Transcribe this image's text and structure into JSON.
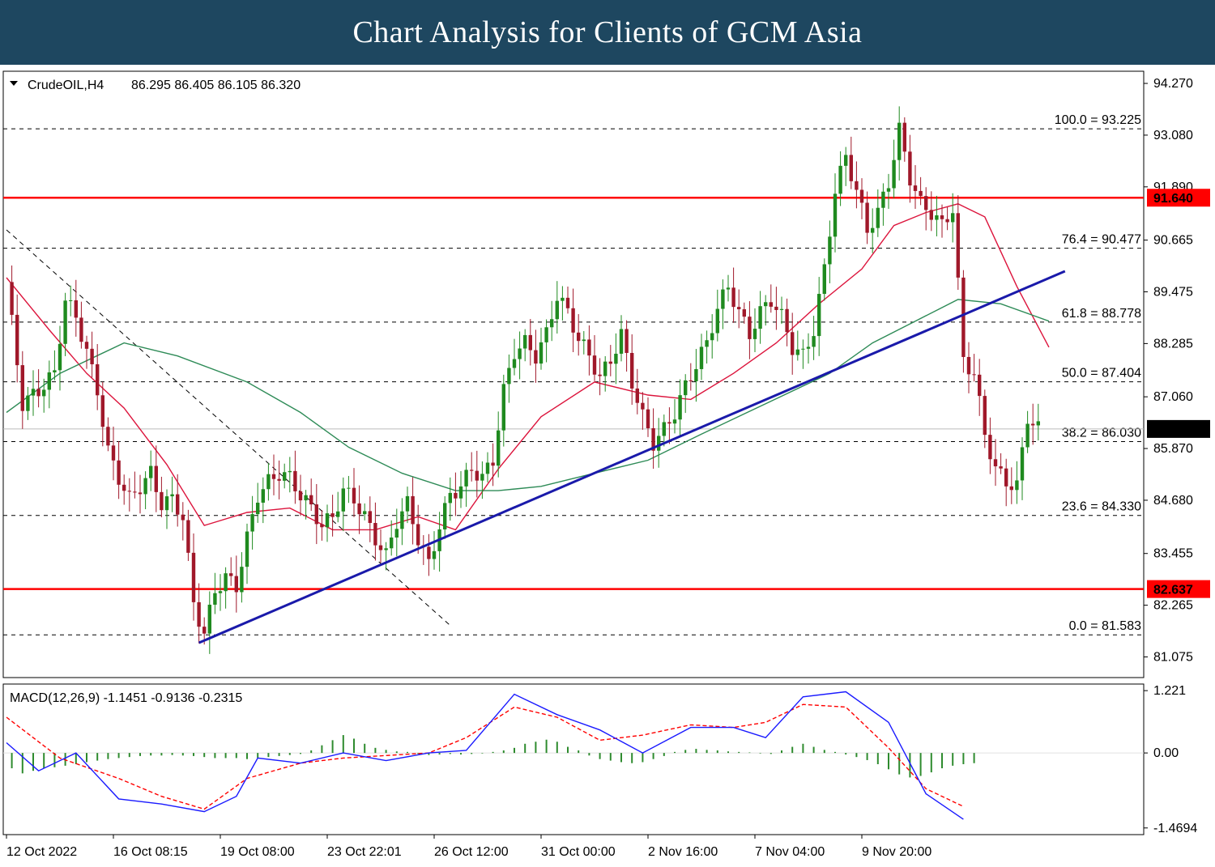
{
  "banner": {
    "title": "Chart Analysis for Clients of GCM Asia"
  },
  "chart_data": {
    "type": "candlestick",
    "symbol": "CrudeOIL,H4",
    "ohlc_header": "86.295 86.405 86.105 86.320",
    "price_axis": {
      "ylim": [
        80.6,
        94.55
      ],
      "ticks": [
        "94.270",
        "93.080",
        "91.890",
        "90.665",
        "89.475",
        "88.285",
        "87.060",
        "85.870",
        "84.680",
        "83.455",
        "82.265",
        "81.075"
      ]
    },
    "time_axis": {
      "labels": [
        "12 Oct 2022",
        "16 Oct 08:15",
        "19 Oct 08:00",
        "23 Oct 22:01",
        "26 Oct 12:00",
        "31 Oct 00:00",
        "2 Nov 16:00",
        "7 Nov 04:00",
        "9 Nov 20:00"
      ]
    },
    "current_price": {
      "label": "86.320",
      "value": 86.32
    },
    "horizontal_levels": [
      {
        "label": "91.640",
        "value": 91.64,
        "color": "#ff0000"
      },
      {
        "label": "82.637",
        "value": 82.637,
        "color": "#ff0000"
      }
    ],
    "fibonacci": [
      {
        "label": "100.0 = 93.225",
        "value": 93.225
      },
      {
        "label": "76.4 = 90.477",
        "value": 90.477
      },
      {
        "label": "61.8 = 88.778",
        "value": 88.778
      },
      {
        "label": "50.0 = 87.404",
        "value": 87.404
      },
      {
        "label": "38.2 = 86.030",
        "value": 86.03
      },
      {
        "label": "23.6 = 84.330",
        "value": 84.33
      },
      {
        "label": "0.0 = 81.583",
        "value": 81.583
      }
    ],
    "trendline_up": {
      "from": [
        36,
        81.4
      ],
      "to": [
        198,
        89.95
      ],
      "color": "#1a1aaa"
    },
    "trendline_down": {
      "from": [
        0,
        90.9
      ],
      "to": [
        83,
        81.8
      ]
    },
    "close_path": [
      [
        0,
        89.7
      ],
      [
        3,
        86.9
      ],
      [
        6,
        87.2
      ],
      [
        9,
        87.6
      ],
      [
        11,
        89.3
      ],
      [
        13,
        88.9
      ],
      [
        15,
        88.1
      ],
      [
        17,
        87.2
      ],
      [
        19,
        85.8
      ],
      [
        21,
        85.2
      ],
      [
        23,
        84.7
      ],
      [
        25,
        85.0
      ],
      [
        27,
        85.3
      ],
      [
        29,
        84.6
      ],
      [
        31,
        84.7
      ],
      [
        33,
        84.3
      ],
      [
        35,
        82.3
      ],
      [
        37,
        81.6
      ],
      [
        39,
        82.6
      ],
      [
        41,
        82.9
      ],
      [
        43,
        82.7
      ],
      [
        45,
        83.8
      ],
      [
        47,
        84.8
      ],
      [
        49,
        85.1
      ],
      [
        51,
        85.3
      ],
      [
        53,
        85.2
      ],
      [
        55,
        84.8
      ],
      [
        57,
        84.5
      ],
      [
        59,
        84.1
      ],
      [
        61,
        84.3
      ],
      [
        63,
        84.9
      ],
      [
        65,
        84.7
      ],
      [
        67,
        84.3
      ],
      [
        69,
        83.8
      ],
      [
        71,
        83.4
      ],
      [
        73,
        84.2
      ],
      [
        75,
        84.6
      ],
      [
        77,
        83.8
      ],
      [
        79,
        83.2
      ],
      [
        81,
        84.1
      ],
      [
        83,
        84.8
      ],
      [
        85,
        85.0
      ],
      [
        87,
        85.4
      ],
      [
        89,
        85.2
      ],
      [
        91,
        85.6
      ],
      [
        93,
        87.2
      ],
      [
        95,
        88.1
      ],
      [
        97,
        88.3
      ],
      [
        99,
        88.0
      ],
      [
        101,
        88.5
      ],
      [
        103,
        89.4
      ],
      [
        105,
        89.0
      ],
      [
        107,
        88.4
      ],
      [
        109,
        88.0
      ],
      [
        111,
        87.5
      ],
      [
        113,
        87.9
      ],
      [
        115,
        88.5
      ],
      [
        117,
        87.4
      ],
      [
        119,
        86.6
      ],
      [
        121,
        86.0
      ],
      [
        123,
        86.3
      ],
      [
        125,
        86.7
      ],
      [
        127,
        87.3
      ],
      [
        129,
        87.8
      ],
      [
        131,
        88.3
      ],
      [
        133,
        89.1
      ],
      [
        135,
        89.6
      ],
      [
        137,
        89.0
      ],
      [
        139,
        88.5
      ],
      [
        141,
        89.0
      ],
      [
        143,
        89.3
      ],
      [
        145,
        88.9
      ],
      [
        147,
        88.2
      ],
      [
        149,
        88.0
      ],
      [
        151,
        88.6
      ],
      [
        153,
        90.0
      ],
      [
        155,
        91.8
      ],
      [
        157,
        92.6
      ],
      [
        159,
        91.8
      ],
      [
        161,
        90.9
      ],
      [
        163,
        91.3
      ],
      [
        165,
        92.0
      ],
      [
        167,
        93.2
      ],
      [
        169,
        92.1
      ],
      [
        171,
        91.5
      ],
      [
        173,
        91.3
      ],
      [
        175,
        91.0
      ],
      [
        177,
        91.4
      ],
      [
        179,
        87.9
      ],
      [
        181,
        87.6
      ],
      [
        183,
        86.2
      ],
      [
        185,
        85.4
      ],
      [
        187,
        85.1
      ],
      [
        189,
        85.0
      ],
      [
        191,
        86.6
      ],
      [
        193,
        86.32
      ]
    ],
    "series": [
      {
        "color": "#dc143c",
        "values": [
          [
            0,
            89.8
          ],
          [
            8,
            88.6
          ],
          [
            15,
            87.6
          ],
          [
            22,
            86.8
          ],
          [
            30,
            85.5
          ],
          [
            37,
            84.1
          ],
          [
            45,
            84.4
          ],
          [
            53,
            84.5
          ],
          [
            61,
            84.0
          ],
          [
            69,
            84.0
          ],
          [
            77,
            84.3
          ],
          [
            84,
            84.0
          ],
          [
            92,
            85.4
          ],
          [
            100,
            86.6
          ],
          [
            110,
            87.4
          ],
          [
            120,
            87.1
          ],
          [
            128,
            87.0
          ],
          [
            136,
            87.6
          ],
          [
            144,
            88.3
          ],
          [
            152,
            89.2
          ],
          [
            160,
            90.0
          ],
          [
            166,
            91.0
          ],
          [
            172,
            91.3
          ],
          [
            178,
            91.5
          ],
          [
            183,
            91.2
          ],
          [
            189,
            89.6
          ],
          [
            195,
            88.2
          ]
        ]
      },
      {
        "color": "#2e8b57",
        "values": [
          [
            0,
            86.7
          ],
          [
            10,
            87.6
          ],
          [
            22,
            88.3
          ],
          [
            32,
            88.0
          ],
          [
            45,
            87.4
          ],
          [
            55,
            86.7
          ],
          [
            64,
            85.9
          ],
          [
            74,
            85.3
          ],
          [
            84,
            84.9
          ],
          [
            92,
            84.9
          ],
          [
            100,
            85.0
          ],
          [
            110,
            85.3
          ],
          [
            120,
            85.6
          ],
          [
            130,
            86.2
          ],
          [
            142,
            86.9
          ],
          [
            154,
            87.6
          ],
          [
            162,
            88.3
          ],
          [
            170,
            88.8
          ],
          [
            178,
            89.3
          ],
          [
            186,
            89.2
          ],
          [
            195,
            88.8
          ]
        ]
      }
    ],
    "macd": {
      "label": "MACD(12,26,9) -1.1451 -0.9136 -0.2315",
      "ylim": [
        -1.6,
        1.35
      ],
      "ticks": [
        "1.221",
        "0.00",
        "-1.4694"
      ],
      "main": {
        "color": "#1a1aff",
        "values": [
          [
            0,
            0.2
          ],
          [
            6,
            -0.35
          ],
          [
            13,
            0.0
          ],
          [
            21,
            -0.9
          ],
          [
            29,
            -1.0
          ],
          [
            37,
            -1.15
          ],
          [
            43,
            -0.85
          ],
          [
            47,
            -0.1
          ],
          [
            55,
            -0.2
          ],
          [
            63,
            0.0
          ],
          [
            71,
            -0.15
          ],
          [
            79,
            0.0
          ],
          [
            86,
            0.05
          ],
          [
            95,
            1.15
          ],
          [
            103,
            0.75
          ],
          [
            111,
            0.45
          ],
          [
            119,
            -0.0
          ],
          [
            128,
            0.5
          ],
          [
            136,
            0.5
          ],
          [
            142,
            0.3
          ],
          [
            149,
            1.1
          ],
          [
            157,
            1.2
          ],
          [
            165,
            0.6
          ],
          [
            172,
            -0.8
          ],
          [
            179,
            -1.3
          ]
        ]
      },
      "signal": {
        "color": "#ff0000",
        "values": [
          [
            0,
            0.7
          ],
          [
            10,
            -0.1
          ],
          [
            21,
            -0.5
          ],
          [
            29,
            -0.85
          ],
          [
            37,
            -1.1
          ],
          [
            45,
            -0.5
          ],
          [
            55,
            -0.2
          ],
          [
            63,
            -0.1
          ],
          [
            71,
            -0.05
          ],
          [
            79,
            0.0
          ],
          [
            86,
            0.3
          ],
          [
            95,
            0.9
          ],
          [
            103,
            0.7
          ],
          [
            111,
            0.25
          ],
          [
            119,
            0.35
          ],
          [
            128,
            0.55
          ],
          [
            136,
            0.5
          ],
          [
            142,
            0.6
          ],
          [
            149,
            0.95
          ],
          [
            157,
            0.9
          ],
          [
            165,
            0.1
          ],
          [
            172,
            -0.7
          ],
          [
            179,
            -1.05
          ]
        ]
      },
      "histogram": [
        -0.3,
        -0.4,
        -0.35,
        -0.3,
        -0.28,
        -0.25,
        -0.22,
        -0.18,
        -0.15,
        -0.12,
        -0.1,
        -0.08,
        -0.06,
        -0.05,
        -0.05,
        -0.04,
        -0.05,
        -0.06,
        -0.08,
        -0.1,
        -0.1,
        -0.1,
        -0.12,
        -0.1,
        -0.08,
        -0.06,
        -0.04,
        -0.02,
        0.05,
        0.15,
        0.25,
        0.35,
        0.28,
        0.18,
        0.1,
        0.06,
        0.03,
        0.02,
        -0.02,
        -0.04,
        -0.03,
        -0.02,
        -0.03,
        -0.02,
        -0.01,
        0.02,
        0.05,
        0.1,
        0.18,
        0.22,
        0.26,
        0.22,
        0.12,
        0.05,
        -0.05,
        -0.12,
        -0.15,
        -0.18,
        -0.2,
        -0.18,
        -0.12,
        -0.06,
        0.02,
        0.06,
        0.08,
        0.06,
        0.05,
        0.03,
        0.02,
        0.01,
        -0.01,
        -0.02,
        0.05,
        0.12,
        0.18,
        0.12,
        0.06,
        0.02,
        -0.03,
        -0.08,
        -0.14,
        -0.22,
        -0.32,
        -0.42,
        -0.48,
        -0.45,
        -0.38,
        -0.3,
        -0.25,
        -0.22,
        -0.2
      ]
    }
  }
}
